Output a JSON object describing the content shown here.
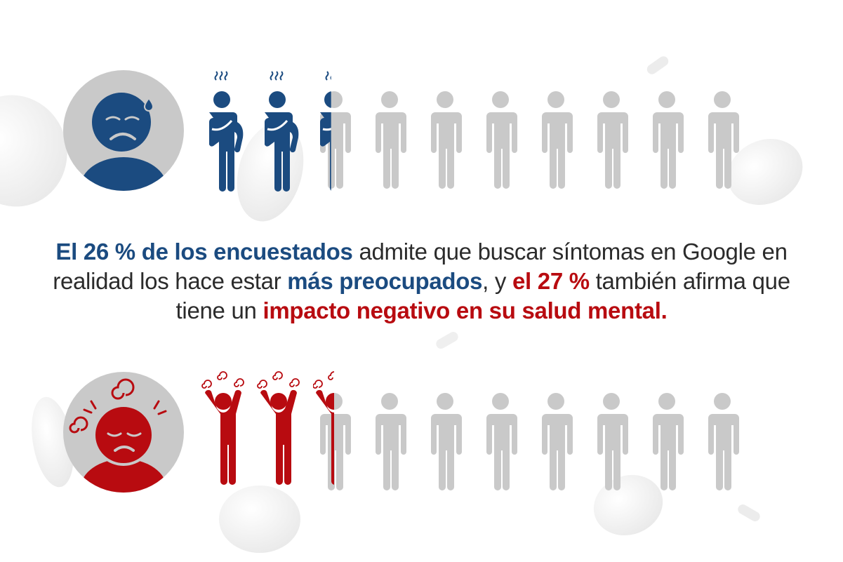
{
  "statistic_worried": {
    "percent": 26,
    "highlighted_figures": 2.6,
    "total_figures": 10,
    "icon": "sweating-person-icon",
    "avatar_icon": "worried-face-avatar-icon",
    "color": "#1b4b80"
  },
  "statistic_mental_health": {
    "percent": 27,
    "highlighted_figures": 2.7,
    "total_figures": 10,
    "icon": "stressed-person-icon",
    "avatar_icon": "dizzy-face-avatar-icon",
    "color": "#b80b10"
  },
  "inactive_color": "#c9c9c9",
  "statement": {
    "part1_highlight": "El 26 % de los encuestados",
    "part2": " admite que buscar síntomas en Google en realidad los hace estar ",
    "part3_highlight": "más preocupados",
    "part4": ", y ",
    "part5_highlight": "el 27 %",
    "part6": " también afirma que tiene un ",
    "part7_highlight": "impacto negativo en su salud mental."
  }
}
